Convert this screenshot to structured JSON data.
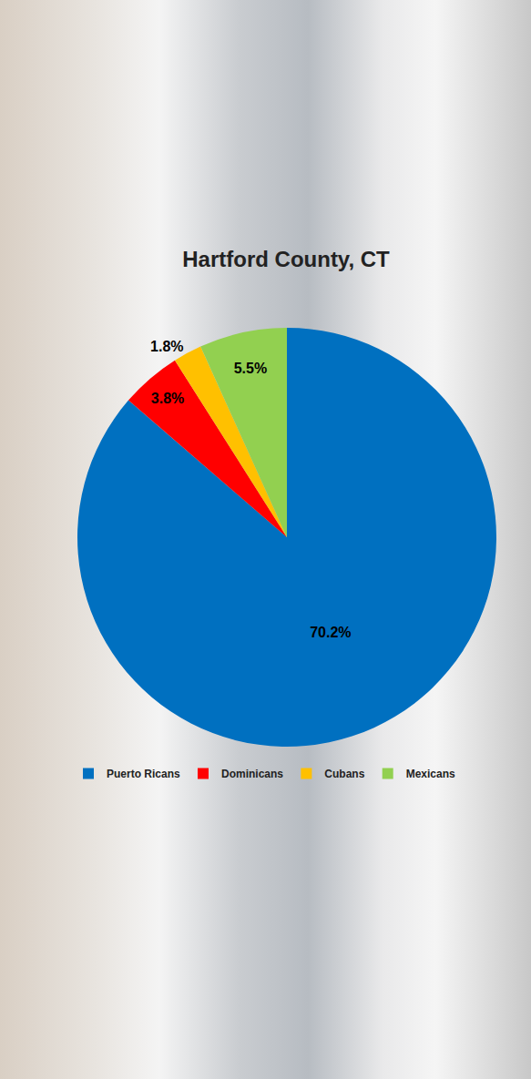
{
  "chart_data": {
    "type": "pie",
    "title": "Hartford County, CT",
    "categories": [
      "Puerto Ricans",
      "Dominicans",
      "Cubans",
      "Mexicans"
    ],
    "values": [
      70.2,
      3.8,
      1.8,
      5.5
    ],
    "value_labels": [
      "70.2%",
      "3.8%",
      "1.8%",
      "5.5%"
    ],
    "colors": [
      "#0070C0",
      "#FF0000",
      "#FFC000",
      "#92D050"
    ],
    "data_labels": true,
    "legend": "bottom"
  }
}
